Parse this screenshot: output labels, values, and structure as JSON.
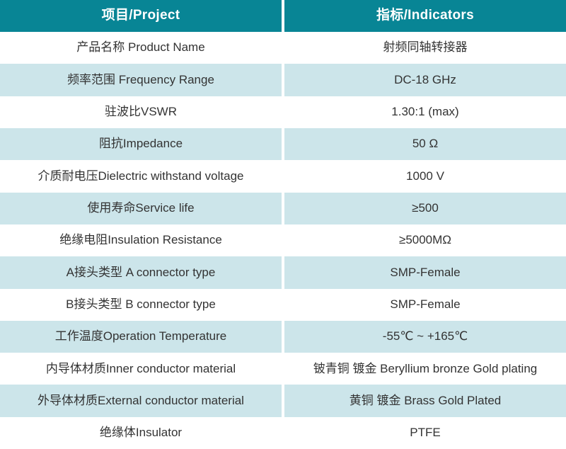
{
  "colors": {
    "header_bg": "#088595",
    "header_text": "#ffffff",
    "row_bg": "#ffffff",
    "row_alt_bg": "#cce5ea",
    "text": "#333333"
  },
  "table": {
    "header": {
      "project": "项目/Project",
      "indicators": "指标/Indicators"
    },
    "rows": [
      {
        "label": "产品名称 Product Name",
        "value": "射频同轴转接器"
      },
      {
        "label": "频率范围 Frequency Range",
        "value": "DC-18 GHz"
      },
      {
        "label": "驻波比VSWR",
        "value": "1.30:1 (max)"
      },
      {
        "label": "阻抗Impedance",
        "value": "50 Ω"
      },
      {
        "label": "介质耐电压Dielectric withstand voltage",
        "value": "1000 V"
      },
      {
        "label": "使用寿命Service life",
        "value": "≥500"
      },
      {
        "label": "绝缘电阻Insulation Resistance",
        "value": "≥5000MΩ"
      },
      {
        "label": "A接头类型 A connector type",
        "value": "SMP-Female"
      },
      {
        "label": "B接头类型 B connector type",
        "value": "SMP-Female"
      },
      {
        "label": "工作温度Operation Temperature",
        "value": "-55℃ ~ +165℃"
      },
      {
        "label": "内导体材质Inner conductor material",
        "value": "铍青铜 镀金 Beryllium bronze Gold plating"
      },
      {
        "label": "外导体材质External conductor material",
        "value": "黄铜 镀金 Brass Gold Plated"
      },
      {
        "label": "绝缘体Insulator",
        "value": "PTFE"
      }
    ]
  }
}
